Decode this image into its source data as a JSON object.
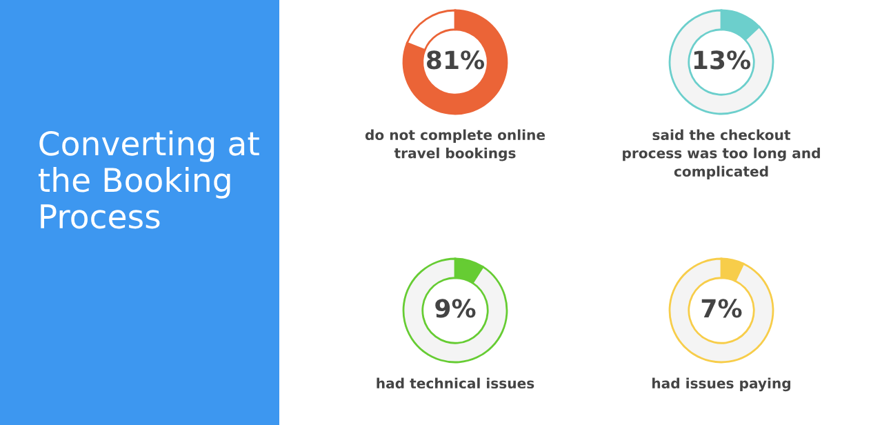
{
  "chart_data": [
    {
      "type": "other",
      "title": "Converting at the Booking Process"
    },
    {
      "type": "donut",
      "categories": [
        null,
        null
      ],
      "values": [
        81,
        19
      ],
      "colors": [
        "#eb6437",
        "#ffffff"
      ],
      "annotations": [
        "81%"
      ],
      "title": "do not complete online travel bookings"
    },
    {
      "type": "donut",
      "categories": [
        null,
        null
      ],
      "values": [
        13,
        87
      ],
      "colors": [
        "#6ccfcc",
        "#f4f4f4"
      ],
      "annotations": [
        "13%"
      ],
      "title": "said the checkout process was too long and complicated"
    },
    {
      "type": "donut",
      "categories": [
        null,
        null
      ],
      "values": [
        9,
        91
      ],
      "colors": [
        "#66cc33",
        "#f4f4f4"
      ],
      "annotations": [
        "9%"
      ],
      "title": "had technical issues"
    },
    {
      "type": "donut",
      "categories": [
        null,
        null
      ],
      "values": [
        7,
        93
      ],
      "colors": [
        "#f7cd4a",
        "#f4f4f4"
      ],
      "annotations": [
        "7%"
      ],
      "title": "had issues paying"
    }
  ]
}
